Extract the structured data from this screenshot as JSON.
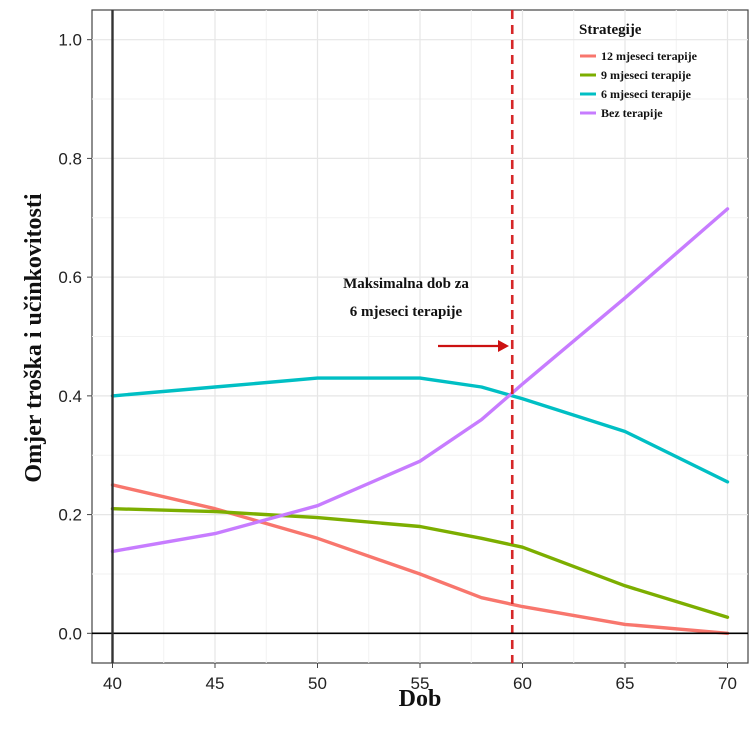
{
  "chart_data": {
    "type": "line",
    "xlabel": "Dob",
    "ylabel": "Omjer troška i učinkovitosti",
    "xlim": [
      39,
      71
    ],
    "ylim": [
      -0.05,
      1.05
    ],
    "x_ticks": [
      40,
      45,
      50,
      55,
      60,
      65,
      70
    ],
    "y_ticks": [
      0.0,
      0.2,
      0.4,
      0.6,
      0.8,
      1.0
    ],
    "x_tick_labels": [
      "40",
      "45",
      "50",
      "55",
      "60",
      "65",
      "70"
    ],
    "y_tick_labels": [
      "0.0",
      "0.2",
      "0.4",
      "0.6",
      "0.8",
      "1.0"
    ],
    "grid": true,
    "legend": {
      "title": "Strategije",
      "placement": "top-right"
    },
    "series": [
      {
        "name": "12 mjeseci terapije",
        "color": "#f8766d",
        "points": [
          [
            40,
            0.25
          ],
          [
            45,
            0.21
          ],
          [
            50,
            0.16
          ],
          [
            55,
            0.1
          ],
          [
            58,
            0.06
          ],
          [
            60,
            0.045
          ],
          [
            65,
            0.015
          ],
          [
            70,
            0.0
          ]
        ]
      },
      {
        "name": "9 mjeseci terapije",
        "color": "#7cae00",
        "points": [
          [
            40,
            0.21
          ],
          [
            45,
            0.205
          ],
          [
            50,
            0.195
          ],
          [
            55,
            0.18
          ],
          [
            58,
            0.16
          ],
          [
            60,
            0.145
          ],
          [
            65,
            0.08
          ],
          [
            70,
            0.027
          ]
        ]
      },
      {
        "name": "6 mjeseci terapije",
        "color": "#00bfc4",
        "points": [
          [
            40,
            0.4
          ],
          [
            45,
            0.415
          ],
          [
            50,
            0.43
          ],
          [
            55,
            0.43
          ],
          [
            58,
            0.415
          ],
          [
            60,
            0.395
          ],
          [
            65,
            0.34
          ],
          [
            70,
            0.255
          ]
        ]
      },
      {
        "name": "Bez terapije",
        "color": "#c77cff",
        "points": [
          [
            40,
            0.138
          ],
          [
            45,
            0.168
          ],
          [
            50,
            0.215
          ],
          [
            55,
            0.29
          ],
          [
            58,
            0.36
          ],
          [
            60,
            0.42
          ],
          [
            65,
            0.565
          ],
          [
            70,
            0.715
          ]
        ]
      }
    ],
    "reference_line": {
      "x": 59.5,
      "color": "#d62728",
      "style": "dashed"
    },
    "annotation": {
      "lines": [
        "Maksimalna dob za",
        "6 mjeseci terapije"
      ],
      "arrow_color": "#cc1111"
    },
    "zero_line_color": "#000000",
    "axis_line_color": "#333333"
  }
}
